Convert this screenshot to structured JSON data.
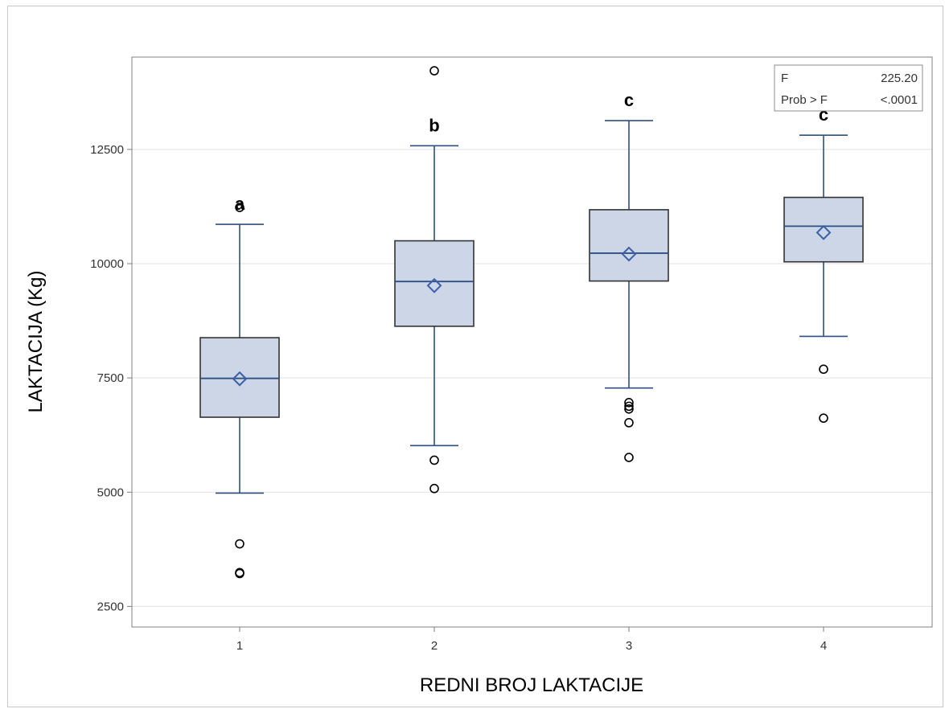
{
  "chart_data": {
    "type": "box",
    "title": "",
    "xlabel": "REDNI BROJ LAKTACIJE",
    "ylabel": "LAKTACIJA (Kg)",
    "categories": [
      "1",
      "2",
      "3",
      "4"
    ],
    "yticks": [
      2500,
      5000,
      7500,
      10000,
      12500
    ],
    "ylim": [
      2050,
      14520
    ],
    "grid": "horizontal",
    "colors": {
      "box_fill": "#ccd6e6",
      "box_stroke": "#333333",
      "median_whisker": "#2e4f82",
      "mean_marker": "#3b5fa8",
      "outlier": "#000000",
      "grid": "#e2e2e2"
    },
    "boxes": [
      {
        "category": "1",
        "letter": "a",
        "whisker_low": 4980,
        "q1": 6640,
        "median": 7490,
        "q3": 8380,
        "whisker_high": 10860,
        "mean": 7480,
        "outliers": [
          11230,
          3870,
          3240,
          3220
        ]
      },
      {
        "category": "2",
        "letter": "b",
        "whisker_low": 6020,
        "q1": 8630,
        "median": 9610,
        "q3": 10500,
        "whisker_high": 12580,
        "mean": 9520,
        "outliers": [
          14220,
          5700,
          5080
        ]
      },
      {
        "category": "3",
        "letter": "c",
        "whisker_low": 7280,
        "q1": 9620,
        "median": 10230,
        "q3": 11180,
        "whisker_high": 13130,
        "mean": 10210,
        "outliers": [
          6960,
          6880,
          6820,
          6520,
          5760
        ]
      },
      {
        "category": "4",
        "letter": "c",
        "whisker_low": 8410,
        "q1": 10040,
        "median": 10820,
        "q3": 11450,
        "whisker_high": 12810,
        "mean": 10680,
        "outliers": [
          7690,
          6620
        ]
      }
    ],
    "inset": {
      "rows": [
        {
          "label": "F",
          "value": "225.20"
        },
        {
          "label": "Prob > F",
          "value": "<.0001"
        }
      ],
      "position": "top-right"
    }
  }
}
